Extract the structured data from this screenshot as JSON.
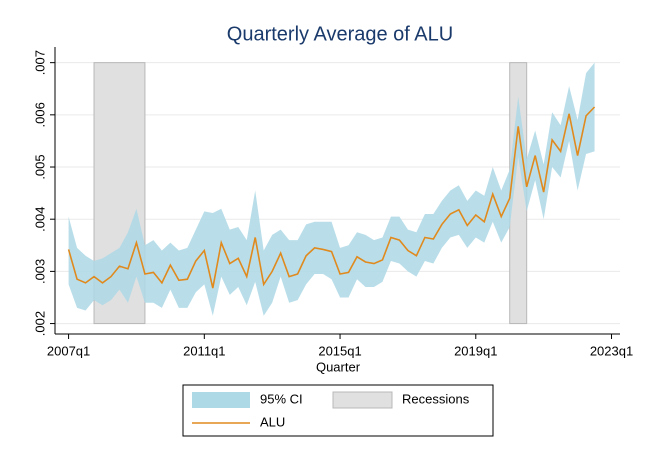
{
  "chart_data": {
    "type": "line",
    "title": "Quarterly Average of ALU",
    "x_label": "Quarter",
    "x": [
      2007,
      2007.25,
      2007.5,
      2007.75,
      2008,
      2008.25,
      2008.5,
      2008.75,
      2009,
      2009.25,
      2009.5,
      2009.75,
      2010,
      2010.25,
      2010.5,
      2010.75,
      2011,
      2011.25,
      2011.5,
      2011.75,
      2012,
      2012.25,
      2012.5,
      2012.75,
      2013,
      2013.25,
      2013.5,
      2013.75,
      2014,
      2014.25,
      2014.5,
      2014.75,
      2015,
      2015.25,
      2015.5,
      2015.75,
      2016,
      2016.25,
      2016.5,
      2016.75,
      2017,
      2017.25,
      2017.5,
      2017.75,
      2018,
      2018.25,
      2018.5,
      2018.75,
      2019,
      2019.25,
      2019.5,
      2019.75,
      2020,
      2020.25,
      2020.5,
      2020.75,
      2021,
      2021.25,
      2021.5,
      2021.75,
      2022,
      2022.25,
      2022.5
    ],
    "series": [
      {
        "name": "95% CI",
        "type": "area",
        "color": "#add8e6",
        "values_high": [
          0.00405,
          0.00345,
          0.0033,
          0.0032,
          0.00325,
          0.00335,
          0.00345,
          0.00375,
          0.0042,
          0.0035,
          0.0036,
          0.0034,
          0.00355,
          0.0034,
          0.00345,
          0.0038,
          0.00415,
          0.00412,
          0.0042,
          0.0038,
          0.00385,
          0.0036,
          0.00455,
          0.0034,
          0.0037,
          0.0038,
          0.0036,
          0.0036,
          0.0039,
          0.00395,
          0.00395,
          0.00395,
          0.00345,
          0.0035,
          0.00375,
          0.0037,
          0.0036,
          0.00365,
          0.00405,
          0.00405,
          0.0038,
          0.00375,
          0.0041,
          0.0041,
          0.00435,
          0.00455,
          0.00465,
          0.00435,
          0.00455,
          0.00445,
          0.005,
          0.00455,
          0.00495,
          0.00635,
          0.00515,
          0.0057,
          0.00505,
          0.00605,
          0.0058,
          0.00655,
          0.0059,
          0.0068,
          0.007
        ],
        "values_low": [
          0.00275,
          0.0023,
          0.00225,
          0.00245,
          0.00235,
          0.00245,
          0.00265,
          0.0024,
          0.0029,
          0.0024,
          0.0024,
          0.0023,
          0.00265,
          0.0023,
          0.0023,
          0.0026,
          0.00275,
          0.00215,
          0.0029,
          0.00255,
          0.0027,
          0.00235,
          0.0028,
          0.00215,
          0.0024,
          0.0029,
          0.0024,
          0.00245,
          0.00275,
          0.00295,
          0.00295,
          0.00285,
          0.0025,
          0.0025,
          0.00285,
          0.0027,
          0.0027,
          0.0028,
          0.0032,
          0.00315,
          0.003,
          0.0029,
          0.0032,
          0.00315,
          0.00345,
          0.00365,
          0.0037,
          0.00345,
          0.00365,
          0.00355,
          0.00395,
          0.00355,
          0.00385,
          0.0052,
          0.00415,
          0.00475,
          0.004,
          0.005,
          0.0048,
          0.0055,
          0.00455,
          0.00525,
          0.0053
        ]
      },
      {
        "name": "ALU",
        "type": "line",
        "color": "#e08a1e",
        "values": [
          0.00342,
          0.00285,
          0.00278,
          0.0029,
          0.00278,
          0.0029,
          0.0031,
          0.00305,
          0.00355,
          0.00295,
          0.00298,
          0.00278,
          0.00312,
          0.00283,
          0.00285,
          0.0032,
          0.0034,
          0.00268,
          0.00355,
          0.00315,
          0.00325,
          0.0029,
          0.00365,
          0.00275,
          0.003,
          0.00335,
          0.0029,
          0.00295,
          0.0033,
          0.00345,
          0.00342,
          0.00338,
          0.00295,
          0.00298,
          0.00328,
          0.00318,
          0.00315,
          0.00322,
          0.00365,
          0.0036,
          0.0034,
          0.0033,
          0.00365,
          0.00362,
          0.0039,
          0.0041,
          0.00418,
          0.00388,
          0.00408,
          0.00395,
          0.00448,
          0.00405,
          0.0044,
          0.00578,
          0.00462,
          0.00522,
          0.00452,
          0.00552,
          0.0053,
          0.00602,
          0.00522,
          0.00598,
          0.00615
        ]
      }
    ],
    "recessions": {
      "name": "Recessions",
      "color": "#e0e0e0",
      "periods": [
        [
          2007.75,
          2009.25
        ],
        [
          2020,
          2020.5
        ]
      ]
    },
    "xlim": [
      2006.6,
      2023.25
    ],
    "xticks": [
      {
        "value": 2007,
        "label": "2007q1"
      },
      {
        "value": 2011,
        "label": "2011q1"
      },
      {
        "value": 2015,
        "label": "2015q1"
      },
      {
        "value": 2019,
        "label": "2019q1"
      },
      {
        "value": 2023,
        "label": "2023q1"
      }
    ],
    "ylim": [
      0.0018,
      0.0073
    ],
    "yticks": [
      {
        "value": 0.002,
        "label": ".002"
      },
      {
        "value": 0.003,
        "label": ".003"
      },
      {
        "value": 0.004,
        "label": ".004"
      },
      {
        "value": 0.005,
        "label": ".005"
      },
      {
        "value": 0.006,
        "label": ".006"
      },
      {
        "value": 0.007,
        "label": ".007"
      }
    ],
    "grid": true
  }
}
